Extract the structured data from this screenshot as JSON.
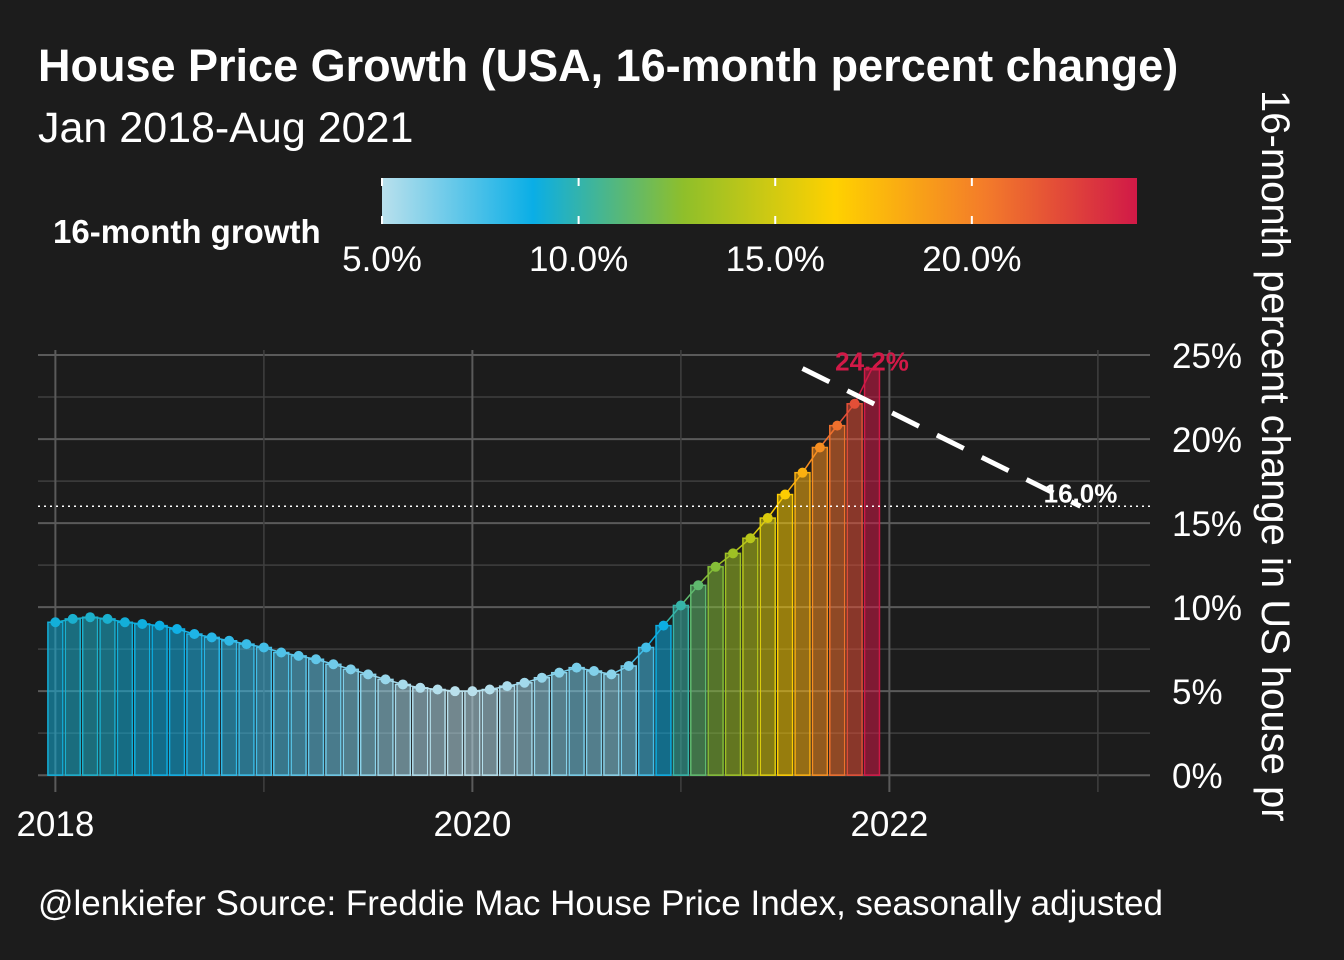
{
  "title": "House Price Growth (USA, 16-month percent change)",
  "subtitle": "Jan 2018-Aug 2021",
  "caption": "@lenkiefer Source: Freddie Mac House Price Index, seasonally adjusted",
  "legend": {
    "title": "16-month growth",
    "labels": [
      "5.0%",
      "10.0%",
      "15.0%",
      "20.0%"
    ],
    "stops": [
      5,
      10,
      15,
      20
    ],
    "range": [
      5.0,
      24.2
    ],
    "colors": [
      "#b9e0ec",
      "#0aaee6",
      "#8fbf2a",
      "#ffd100",
      "#f37b2a",
      "#d11947"
    ]
  },
  "chart_data": {
    "type": "bar",
    "title": "House Price Growth (USA, 16-month percent change)",
    "subtitle": "Jan 2018-Aug 2021",
    "xlabel": "",
    "ylabel": "16-month percent change in US house pr",
    "x_ticks": [
      "2018",
      "2020",
      "2022"
    ],
    "y_ticks": [
      "0%",
      "5%",
      "10%",
      "15%",
      "20%",
      "25%"
    ],
    "xlim": [
      "2017-12",
      "2023-04"
    ],
    "ylim": [
      -1,
      25.3
    ],
    "start_month": "2018-01",
    "values": [
      9.1,
      9.3,
      9.4,
      9.3,
      9.1,
      9.0,
      8.9,
      8.7,
      8.4,
      8.2,
      8.0,
      7.8,
      7.6,
      7.3,
      7.1,
      6.9,
      6.6,
      6.3,
      6.0,
      5.7,
      5.4,
      5.2,
      5.1,
      5.0,
      5.0,
      5.1,
      5.3,
      5.5,
      5.8,
      6.1,
      6.4,
      6.2,
      6.0,
      6.5,
      7.6,
      8.9,
      10.1,
      11.3,
      12.4,
      13.2,
      14.1,
      15.3,
      16.7,
      18.0,
      19.5,
      20.8,
      22.1,
      24.2
    ],
    "annotations": {
      "peak_label": "24.2%",
      "target_label": "16.0%",
      "target_value": 16.0,
      "projection": [
        [
          "2021-08",
          24.2
        ],
        [
          "2022-12",
          16.0
        ]
      ]
    }
  }
}
